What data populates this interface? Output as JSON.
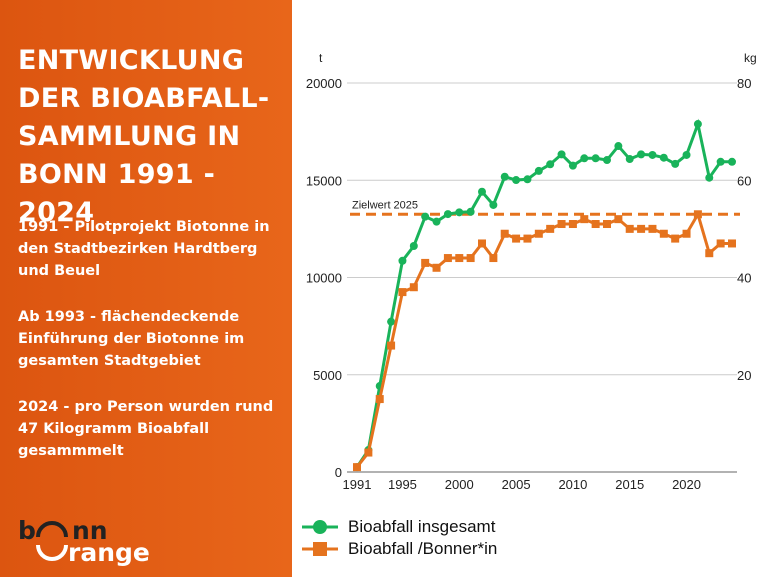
{
  "panel": {
    "title": "ENTWICKLUNG DER BIOABFALL-SAMMLUNG IN BONN 1991 - 2024",
    "paragraphs": [
      "1991 - Pilotprojekt Biotonne in den Stadtbezirken Hardtberg und Beuel",
      "Ab 1993 - flächendeckende Einführung der Biotonne im gesamten Stadtgebiet",
      "2024 - pro Person wurden rund 47 Kilogramm Bioabfall gesammmelt"
    ],
    "logo_text": "bonn orange"
  },
  "colors": {
    "panel": "#e05e14",
    "green": "#19b35a",
    "orange": "#e5731e",
    "grid": "#cccccc"
  },
  "chart_data": {
    "type": "line",
    "x": [
      1991,
      1992,
      1993,
      1994,
      1995,
      1996,
      1997,
      1998,
      1999,
      2000,
      2001,
      2002,
      2003,
      2004,
      2005,
      2006,
      2007,
      2008,
      2009,
      2010,
      2011,
      2012,
      2013,
      2014,
      2015,
      2016,
      2017,
      2018,
      2019,
      2020,
      2021,
      2022,
      2023,
      2024
    ],
    "xticks": [
      1991,
      1995,
      2000,
      2005,
      2010,
      2015,
      2020
    ],
    "xlim": [
      1991,
      2024
    ],
    "y_left": {
      "unit": "t",
      "lim": [
        0,
        20000
      ],
      "ticks": [
        0,
        5000,
        10000,
        15000,
        20000
      ]
    },
    "y_right": {
      "unit": "kg",
      "lim": [
        0,
        80
      ],
      "ticks": [
        20,
        40,
        60,
        80
      ]
    },
    "grid": true,
    "legend_position": "bottom",
    "series": [
      {
        "name": "Bioabfall insgesamt",
        "axis": "left",
        "marker": "circle",
        "color": "#19b35a",
        "values": [
          250,
          1130,
          4420,
          7730,
          10860,
          11620,
          13130,
          12870,
          13260,
          13350,
          13380,
          14410,
          13730,
          15180,
          15010,
          15050,
          15480,
          15820,
          16330,
          15750,
          16130,
          16130,
          16040,
          16760,
          16090,
          16330,
          16300,
          16160,
          15840,
          16300,
          17890,
          15130,
          15950,
          15950
        ]
      },
      {
        "name": "Bioabfall /Bonner*in",
        "axis": "right",
        "marker": "square",
        "color": "#e5731e",
        "values": [
          1,
          4,
          15,
          26,
          37,
          38,
          43,
          42,
          44,
          44,
          44,
          47,
          44,
          49,
          48,
          48,
          49,
          50,
          51,
          51,
          52,
          51,
          51,
          52,
          50,
          50,
          50,
          49,
          48,
          49,
          53,
          45,
          47,
          47
        ]
      }
    ],
    "annotations": [
      {
        "text": "Zielwert 2025",
        "axis": "right",
        "value": 53,
        "style": "dashed",
        "color": "#e5731e"
      }
    ]
  }
}
